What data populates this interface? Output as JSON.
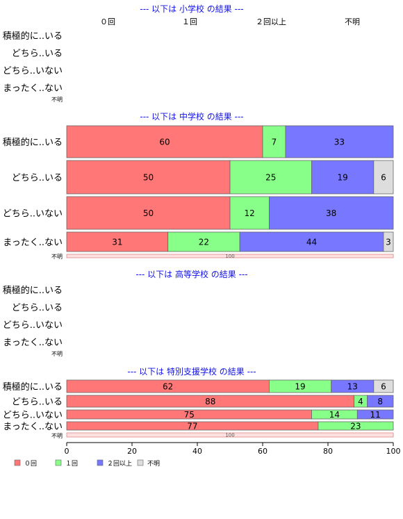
{
  "chart_data": {
    "type": "bar",
    "orientation": "horizontal",
    "stacked": true,
    "xlim": [
      0,
      100
    ],
    "x_ticks": [
      "0",
      "20",
      "40",
      "60",
      "80",
      "100"
    ],
    "grid": false,
    "legend_position": "bottom-left",
    "series_names": [
      "０回",
      "１回",
      "２回以上",
      "不明"
    ],
    "colors": [
      "#ff7777",
      "#88ff88",
      "#7777ff",
      "#dddddd"
    ],
    "sections": [
      {
        "title": "--- 以下は 小学校 の結果 ---",
        "empty": true,
        "column_headers": [
          "０回",
          "１回",
          "２回以上",
          "不明"
        ],
        "categories": [
          "積極的に..いる",
          "どちら..いる",
          "どちら..いない",
          "まったく..ない",
          "不明"
        ]
      },
      {
        "title": "--- 以下は 中学校 の結果 ---",
        "empty": false,
        "categories": [
          "積極的に..いる",
          "どちら..いる",
          "どちら..いない",
          "まったく..ない",
          "不明"
        ],
        "rows": [
          {
            "values": [
              60,
              7,
              33,
              0
            ]
          },
          {
            "values": [
              50,
              25,
              19,
              6
            ]
          },
          {
            "values": [
              50,
              12,
              38,
              0
            ]
          },
          {
            "values": [
              31,
              22,
              44,
              3
            ]
          },
          {
            "values": [
              0,
              0,
              0,
              100
            ]
          }
        ]
      },
      {
        "title": "--- 以下は 高等学校 の結果 ---",
        "empty": true,
        "categories": [
          "積極的に..いる",
          "どちら..いる",
          "どちら..いない",
          "まったく..ない",
          "不明"
        ]
      },
      {
        "title": "--- 以下は 特別支援学校 の結果 ---",
        "empty": false,
        "categories": [
          "積極的に..いる",
          "どちら..いる",
          "どちら..いない",
          "まったく..ない",
          "不明"
        ],
        "rows": [
          {
            "values": [
              62,
              19,
              13,
              6
            ]
          },
          {
            "values": [
              88,
              4,
              8,
              0
            ]
          },
          {
            "values": [
              75,
              14,
              11,
              0
            ]
          },
          {
            "values": [
              77,
              23,
              0,
              0
            ]
          },
          {
            "values": [
              0,
              0,
              0,
              100
            ]
          }
        ]
      }
    ]
  }
}
